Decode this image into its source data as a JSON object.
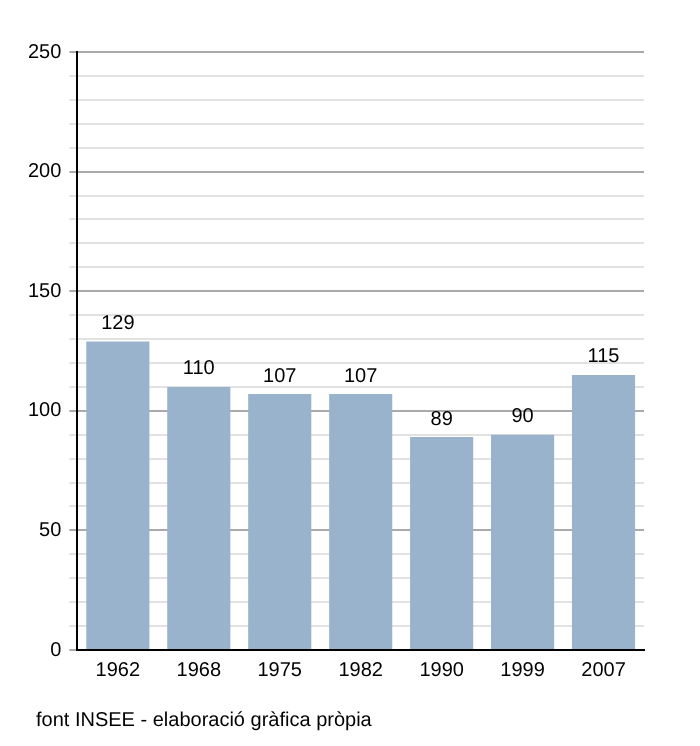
{
  "chart_data": {
    "type": "bar",
    "categories": [
      "1962",
      "1968",
      "1975",
      "1982",
      "1990",
      "1999",
      "2007"
    ],
    "values": [
      129,
      110,
      107,
      107,
      89,
      90,
      115
    ],
    "color": "#9ab3cc",
    "ylim": [
      0,
      250
    ],
    "yticks": [
      0,
      {
        "value": 10,
        "label": null
      },
      {
        "value": 20,
        "label": null
      },
      {
        "value": 30,
        "label": null
      },
      {
        "value": 40,
        "label": null
      },
      50,
      {
        "value": 60,
        "label": null
      },
      {
        "value": 70,
        "label": null
      },
      {
        "value": 80,
        "label": null
      },
      {
        "value": 90,
        "label": null
      },
      100,
      {
        "value": 110,
        "label": null
      },
      {
        "value": 120,
        "label": null
      },
      {
        "value": 130,
        "label": null
      },
      {
        "value": 140,
        "label": null
      },
      150,
      {
        "value": 160,
        "label": null
      },
      {
        "value": 170,
        "label": null
      },
      {
        "value": 180,
        "label": null
      },
      {
        "value": 190,
        "label": null
      },
      200,
      {
        "value": 210,
        "label": null
      },
      {
        "value": 220,
        "label": null
      },
      {
        "value": 230,
        "label": null
      },
      {
        "value": 240,
        "label": null
      },
      250
    ],
    "grid": "y",
    "data_labels": true,
    "legend": false,
    "annotations": [
      "font INSEE - elaboració gràfica pròpia"
    ]
  }
}
